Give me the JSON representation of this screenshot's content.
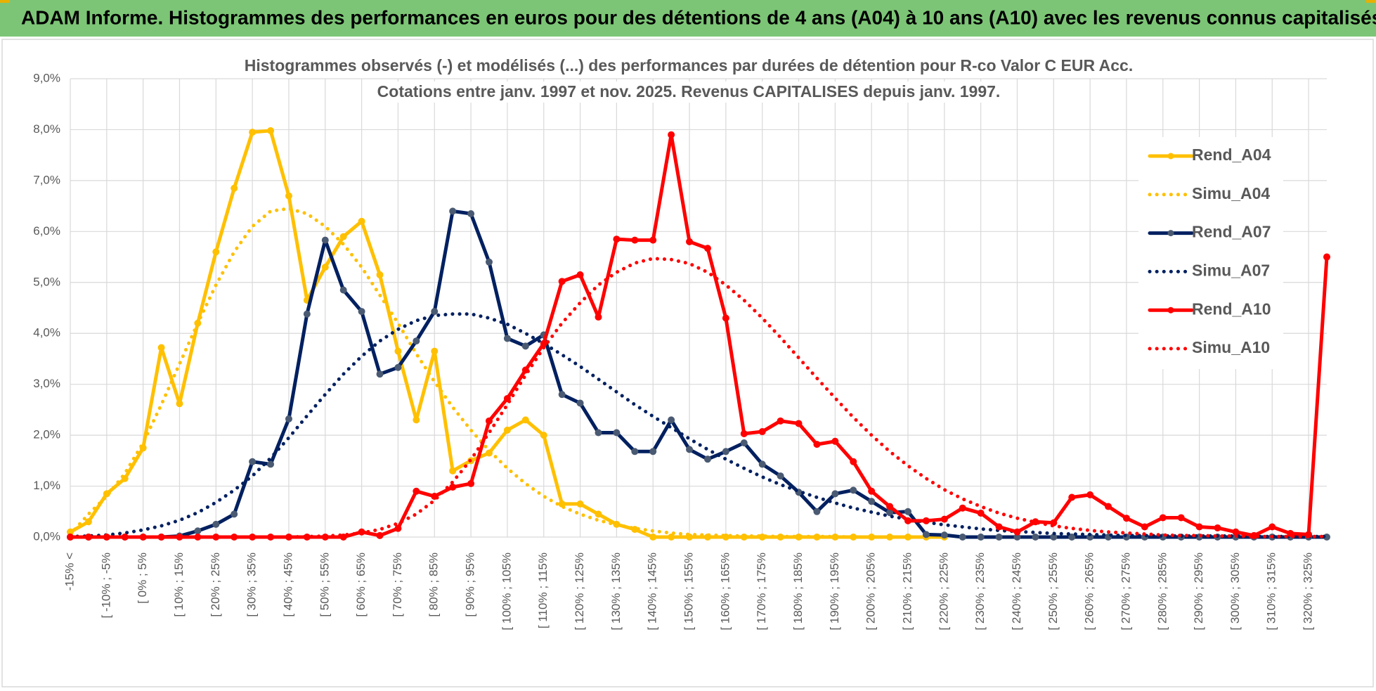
{
  "header": {
    "title": "ADAM Informe. Histogrammes des performances en euros pour des détentions de 4 ans (A04) à 10 ans (A10) avec les revenus connus capitalisés"
  },
  "chart_data": {
    "type": "line",
    "title": "Histogrammes observés (-) et modélisés (...) des performances par durées de détention pour R-co Valor C EUR Acc.",
    "subtitle": "Cotations entre janv. 1997 et nov. 2025. Revenus CAPITALISES depuis janv. 1997.",
    "categories": [
      "-15% <",
      null,
      "[ -10% ; -5%",
      null,
      "[ 0% ; 5%",
      null,
      "[ 10% ; 15%",
      null,
      "[ 20% ; 25%",
      null,
      "[ 30% ; 35%",
      null,
      "[ 40% ; 45%",
      null,
      "[ 50% ; 55%",
      null,
      "[ 60% ; 65%",
      null,
      "[ 70% ; 75%",
      null,
      "[ 80% ; 85%",
      null,
      "[ 90% ; 95%",
      null,
      "[ 100% ; 105%",
      null,
      "[ 110% ; 115%",
      null,
      "[ 120% ; 125%",
      null,
      "[ 130% ; 135%",
      null,
      "[ 140% ; 145%",
      null,
      "[ 150% ; 155%",
      null,
      "[ 160% ; 165%",
      null,
      "[ 170% ; 175%",
      null,
      "[ 180% ; 185%",
      null,
      "[ 190% ; 195%",
      null,
      "[ 200% ; 205%",
      null,
      "[ 210% ; 215%",
      null,
      "[ 220% ; 225%",
      null,
      "[ 230% ; 235%",
      null,
      "[ 240% ; 245%",
      null,
      "[ 250% ; 255%",
      null,
      "[ 260% ; 265%",
      null,
      "[ 270% ; 275%",
      null,
      "[ 280% ; 285%",
      null,
      "[ 290% ; 295%",
      null,
      "[ 300% ; 305%",
      null,
      "[ 310% ; 315%",
      null,
      "[ 320% ; 325%",
      null
    ],
    "series": [
      {
        "name": "Rend_A04",
        "color": "#ffc000",
        "style": "solid",
        "marker_color": "#ffc000",
        "values": [
          0.1,
          0.3,
          0.85,
          1.15,
          1.75,
          3.72,
          2.62,
          4.2,
          5.6,
          6.85,
          7.95,
          7.98,
          6.7,
          4.65,
          5.3,
          5.9,
          6.2,
          5.15,
          3.65,
          2.3,
          3.65,
          1.3,
          1.5,
          1.65,
          2.1,
          2.3,
          2.0,
          0.65,
          0.65,
          0.45,
          0.25,
          0.15,
          0,
          0,
          0,
          0,
          0,
          0,
          0,
          0,
          0,
          0,
          0,
          0,
          0,
          0,
          0,
          0,
          0,
          null,
          null,
          null,
          null,
          null,
          null,
          null,
          null,
          null,
          null,
          null,
          null,
          null,
          null,
          null,
          null,
          null,
          null,
          null,
          null,
          null
        ]
      },
      {
        "name": "Simu_A04",
        "color": "#ffc000",
        "style": "dotted",
        "values": [
          0.05,
          0.45,
          0.8,
          1.25,
          1.85,
          2.6,
          3.4,
          4.2,
          4.95,
          5.6,
          6.1,
          6.4,
          6.45,
          6.35,
          6.1,
          5.75,
          5.3,
          4.75,
          4.2,
          3.6,
          3.05,
          2.55,
          2.1,
          1.7,
          1.35,
          1.05,
          0.8,
          0.6,
          0.45,
          0.33,
          0.24,
          0.17,
          0.12,
          0.08,
          0.05,
          0.04,
          0.03,
          0.02,
          0.02,
          0.01,
          0.01,
          0.01,
          0.01,
          0,
          0,
          0,
          0,
          0,
          0,
          null,
          null,
          null,
          null,
          null,
          null,
          null,
          null,
          null,
          null,
          null,
          null,
          null,
          null,
          null,
          null,
          null,
          null,
          null,
          null,
          null
        ]
      },
      {
        "name": "Rend_A07",
        "color": "#002060",
        "style": "solid",
        "marker_color": "#4a5a72",
        "values": [
          0,
          0,
          0,
          0,
          0,
          0,
          0.02,
          0.12,
          0.25,
          0.45,
          1.48,
          1.43,
          2.32,
          4.38,
          5.83,
          4.85,
          4.43,
          3.2,
          3.33,
          3.85,
          4.43,
          6.4,
          6.35,
          5.4,
          3.9,
          3.75,
          3.97,
          2.8,
          2.63,
          2.05,
          2.05,
          1.68,
          1.68,
          2.3,
          1.72,
          1.53,
          1.68,
          1.85,
          1.43,
          1.2,
          0.88,
          0.5,
          0.85,
          0.92,
          0.7,
          0.48,
          0.5,
          0.05,
          0.04,
          0,
          0,
          0,
          0,
          0,
          0,
          0,
          0,
          0,
          0,
          0,
          0,
          0,
          0,
          0,
          0,
          0,
          0,
          0,
          0,
          0
        ]
      },
      {
        "name": "Simu_A07",
        "color": "#002060",
        "style": "dotted",
        "values": [
          0.01,
          0.02,
          0.04,
          0.08,
          0.14,
          0.22,
          0.33,
          0.48,
          0.68,
          0.92,
          1.2,
          1.55,
          1.95,
          2.38,
          2.8,
          3.2,
          3.55,
          3.85,
          4.08,
          4.25,
          4.35,
          4.38,
          4.38,
          4.3,
          4.18,
          4.0,
          3.8,
          3.58,
          3.35,
          3.1,
          2.85,
          2.6,
          2.37,
          2.15,
          1.93,
          1.72,
          1.53,
          1.35,
          1.18,
          1.03,
          0.9,
          0.78,
          0.67,
          0.57,
          0.49,
          0.41,
          0.35,
          0.29,
          0.24,
          0.2,
          0.16,
          0.13,
          0.11,
          0.09,
          0.07,
          0.06,
          0.05,
          0.04,
          0.03,
          0.03,
          0.02,
          0.02,
          0.02,
          0.02,
          0.02,
          0.01,
          0.01,
          0.01,
          0.01,
          0.01
        ]
      },
      {
        "name": "Rend_A10",
        "color": "#ff0000",
        "style": "solid",
        "marker_color": "#ff0000",
        "values": [
          0,
          0,
          0,
          0,
          0,
          0,
          0,
          0,
          0,
          0,
          0,
          0,
          0,
          0,
          0,
          0,
          0.1,
          0.03,
          0.17,
          0.9,
          0.8,
          0.98,
          1.05,
          2.28,
          2.72,
          3.28,
          3.8,
          5.02,
          5.15,
          4.32,
          5.85,
          5.83,
          5.83,
          7.9,
          5.8,
          5.67,
          4.3,
          2.03,
          2.07,
          2.28,
          2.23,
          1.82,
          1.88,
          1.48,
          0.9,
          0.6,
          0.32,
          0.32,
          0.35,
          0.57,
          0.47,
          0.2,
          0.1,
          0.3,
          0.28,
          0.78,
          0.83,
          0.6,
          0.37,
          0.2,
          0.38,
          0.38,
          0.2,
          0.18,
          0.1,
          0.03,
          0.2,
          0.07,
          0.05,
          5.5
        ]
      },
      {
        "name": "Simu_A10",
        "color": "#ff0000",
        "style": "dotted",
        "values": [
          0,
          0,
          0,
          0,
          0,
          0,
          0,
          0,
          0,
          0,
          0,
          0,
          0,
          0.01,
          0.02,
          0.04,
          0.08,
          0.15,
          0.27,
          0.45,
          0.72,
          1.08,
          1.52,
          2.05,
          2.6,
          3.18,
          3.72,
          4.2,
          4.6,
          4.95,
          5.2,
          5.38,
          5.47,
          5.45,
          5.37,
          5.2,
          4.95,
          4.65,
          4.3,
          3.92,
          3.52,
          3.12,
          2.73,
          2.35,
          2.0,
          1.68,
          1.4,
          1.15,
          0.93,
          0.75,
          0.6,
          0.47,
          0.37,
          0.29,
          0.22,
          0.17,
          0.13,
          0.1,
          0.08,
          0.06,
          0.04,
          0.03,
          0.03,
          0.02,
          0.02,
          0.01,
          0.01,
          0.01,
          0.01,
          0.01
        ]
      }
    ],
    "ylim": [
      0,
      9
    ],
    "yticks": [
      {
        "value": 0,
        "label": "0,0%"
      },
      {
        "value": 1,
        "label": "1,0%"
      },
      {
        "value": 2,
        "label": "2,0%"
      },
      {
        "value": 3,
        "label": "3,0%"
      },
      {
        "value": 4,
        "label": "4,0%"
      },
      {
        "value": 5,
        "label": "5,0%"
      },
      {
        "value": 6,
        "label": "6,0%"
      },
      {
        "value": 7,
        "label": "7,0%"
      },
      {
        "value": 8,
        "label": "8,0%"
      },
      {
        "value": 9,
        "label": "9,0%"
      }
    ],
    "grid": true,
    "legend": "right"
  }
}
